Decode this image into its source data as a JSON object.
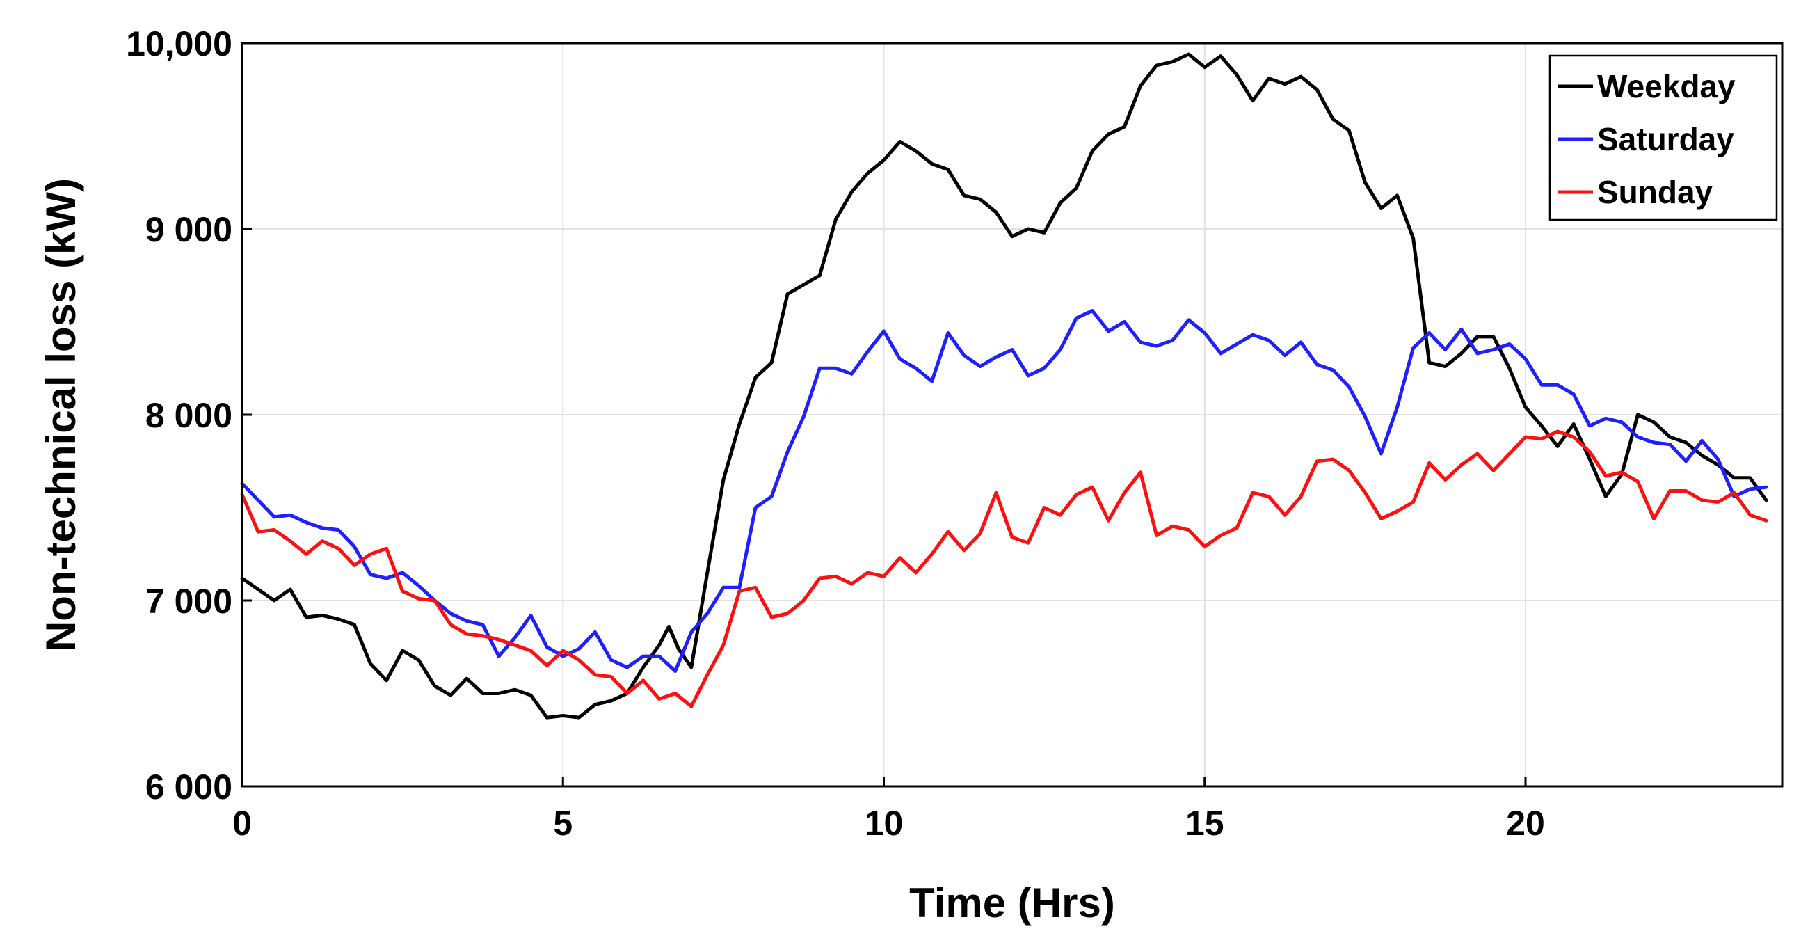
{
  "chart_data": {
    "type": "line",
    "title": "",
    "xlabel": "Time (Hrs)",
    "ylabel": "Non-technical loss (kW)",
    "xlim": [
      0,
      24
    ],
    "ylim": [
      6000,
      10000
    ],
    "grid": true,
    "legend_position": "top-right",
    "x_ticks": [
      0,
      5,
      10,
      15,
      20
    ],
    "x_tick_labels": [
      "0",
      "5",
      "10",
      "15",
      "20"
    ],
    "y_ticks": [
      6000,
      7000,
      8000,
      9000,
      10000
    ],
    "y_tick_labels": [
      "6 000",
      "7 000",
      "8 000",
      "9 000",
      "10,000"
    ],
    "series": [
      {
        "name": "Weekday",
        "color": "#000000",
        "points": [
          [
            0,
            7120
          ],
          [
            0.5,
            7000
          ],
          [
            0.75,
            7060
          ],
          [
            1,
            6910
          ],
          [
            1.25,
            6920
          ],
          [
            1.5,
            6900
          ],
          [
            1.75,
            6870
          ],
          [
            2,
            6660
          ],
          [
            2.25,
            6570
          ],
          [
            2.5,
            6730
          ],
          [
            2.75,
            6680
          ],
          [
            3,
            6540
          ],
          [
            3.25,
            6490
          ],
          [
            3.5,
            6580
          ],
          [
            3.75,
            6500
          ],
          [
            4,
            6500
          ],
          [
            4.25,
            6520
          ],
          [
            4.5,
            6490
          ],
          [
            4.75,
            6370
          ],
          [
            5,
            6380
          ],
          [
            5.25,
            6370
          ],
          [
            5.5,
            6440
          ],
          [
            5.75,
            6460
          ],
          [
            6,
            6500
          ],
          [
            6.25,
            6640
          ],
          [
            6.5,
            6760
          ],
          [
            6.65,
            6860
          ],
          [
            6.8,
            6740
          ],
          [
            7,
            6640
          ],
          [
            7.25,
            7150
          ],
          [
            7.5,
            7650
          ],
          [
            7.75,
            7950
          ],
          [
            8,
            8200
          ],
          [
            8.25,
            8280
          ],
          [
            8.5,
            8650
          ],
          [
            8.75,
            8700
          ],
          [
            9,
            8750
          ],
          [
            9.25,
            9050
          ],
          [
            9.5,
            9200
          ],
          [
            9.75,
            9300
          ],
          [
            10,
            9370
          ],
          [
            10.25,
            9470
          ],
          [
            10.5,
            9420
          ],
          [
            10.75,
            9350
          ],
          [
            11,
            9320
          ],
          [
            11.25,
            9180
          ],
          [
            11.5,
            9160
          ],
          [
            11.75,
            9090
          ],
          [
            12,
            8960
          ],
          [
            12.25,
            9000
          ],
          [
            12.5,
            8980
          ],
          [
            12.75,
            9140
          ],
          [
            13,
            9220
          ],
          [
            13.25,
            9420
          ],
          [
            13.5,
            9510
          ],
          [
            13.75,
            9550
          ],
          [
            14,
            9770
          ],
          [
            14.25,
            9880
          ],
          [
            14.5,
            9900
          ],
          [
            14.75,
            9940
          ],
          [
            15,
            9870
          ],
          [
            15.25,
            9930
          ],
          [
            15.5,
            9830
          ],
          [
            15.75,
            9690
          ],
          [
            16,
            9810
          ],
          [
            16.25,
            9780
          ],
          [
            16.5,
            9820
          ],
          [
            16.75,
            9750
          ],
          [
            17,
            9590
          ],
          [
            17.25,
            9530
          ],
          [
            17.5,
            9250
          ],
          [
            17.75,
            9110
          ],
          [
            18,
            9180
          ],
          [
            18.25,
            8950
          ],
          [
            18.5,
            8280
          ],
          [
            18.75,
            8260
          ],
          [
            19,
            8330
          ],
          [
            19.25,
            8420
          ],
          [
            19.5,
            8420
          ],
          [
            19.75,
            8250
          ],
          [
            20,
            8040
          ],
          [
            20.25,
            7940
          ],
          [
            20.5,
            7830
          ],
          [
            20.75,
            7950
          ],
          [
            21,
            7760
          ],
          [
            21.25,
            7560
          ],
          [
            21.5,
            7680
          ],
          [
            21.75,
            8000
          ],
          [
            22,
            7960
          ],
          [
            22.25,
            7880
          ],
          [
            22.5,
            7850
          ],
          [
            22.75,
            7780
          ],
          [
            23,
            7730
          ],
          [
            23.25,
            7660
          ],
          [
            23.5,
            7660
          ],
          [
            23.75,
            7540
          ]
        ]
      },
      {
        "name": "Saturday",
        "color": "#1f1fff",
        "points": [
          [
            0,
            7630
          ],
          [
            0.25,
            7540
          ],
          [
            0.5,
            7450
          ],
          [
            0.75,
            7460
          ],
          [
            1,
            7420
          ],
          [
            1.25,
            7390
          ],
          [
            1.5,
            7380
          ],
          [
            1.75,
            7290
          ],
          [
            2,
            7140
          ],
          [
            2.25,
            7120
          ],
          [
            2.5,
            7150
          ],
          [
            2.75,
            7080
          ],
          [
            3,
            7000
          ],
          [
            3.25,
            6930
          ],
          [
            3.5,
            6890
          ],
          [
            3.75,
            6870
          ],
          [
            4,
            6700
          ],
          [
            4.25,
            6800
          ],
          [
            4.5,
            6920
          ],
          [
            4.75,
            6750
          ],
          [
            5,
            6700
          ],
          [
            5.25,
            6740
          ],
          [
            5.5,
            6830
          ],
          [
            5.75,
            6680
          ],
          [
            6,
            6640
          ],
          [
            6.25,
            6700
          ],
          [
            6.5,
            6700
          ],
          [
            6.75,
            6620
          ],
          [
            7,
            6830
          ],
          [
            7.25,
            6930
          ],
          [
            7.5,
            7070
          ],
          [
            7.75,
            7070
          ],
          [
            8,
            7500
          ],
          [
            8.25,
            7560
          ],
          [
            8.5,
            7800
          ],
          [
            8.75,
            7990
          ],
          [
            9,
            8250
          ],
          [
            9.25,
            8250
          ],
          [
            9.5,
            8220
          ],
          [
            9.75,
            8340
          ],
          [
            10,
            8450
          ],
          [
            10.25,
            8300
          ],
          [
            10.5,
            8250
          ],
          [
            10.75,
            8180
          ],
          [
            11,
            8440
          ],
          [
            11.25,
            8320
          ],
          [
            11.5,
            8260
          ],
          [
            11.75,
            8310
          ],
          [
            12,
            8350
          ],
          [
            12.25,
            8210
          ],
          [
            12.5,
            8250
          ],
          [
            12.75,
            8350
          ],
          [
            13,
            8520
          ],
          [
            13.25,
            8560
          ],
          [
            13.5,
            8450
          ],
          [
            13.75,
            8500
          ],
          [
            14,
            8390
          ],
          [
            14.25,
            8370
          ],
          [
            14.5,
            8400
          ],
          [
            14.75,
            8510
          ],
          [
            15,
            8440
          ],
          [
            15.25,
            8330
          ],
          [
            15.5,
            8380
          ],
          [
            15.75,
            8430
          ],
          [
            16,
            8400
          ],
          [
            16.25,
            8320
          ],
          [
            16.5,
            8390
          ],
          [
            16.75,
            8270
          ],
          [
            17,
            8240
          ],
          [
            17.25,
            8150
          ],
          [
            17.5,
            7990
          ],
          [
            17.75,
            7790
          ],
          [
            18,
            8040
          ],
          [
            18.25,
            8360
          ],
          [
            18.5,
            8440
          ],
          [
            18.75,
            8350
          ],
          [
            19,
            8460
          ],
          [
            19.25,
            8330
          ],
          [
            19.5,
            8350
          ],
          [
            19.75,
            8380
          ],
          [
            20,
            8300
          ],
          [
            20.25,
            8160
          ],
          [
            20.5,
            8160
          ],
          [
            20.75,
            8110
          ],
          [
            21,
            7940
          ],
          [
            21.25,
            7980
          ],
          [
            21.5,
            7960
          ],
          [
            21.75,
            7880
          ],
          [
            22,
            7850
          ],
          [
            22.25,
            7840
          ],
          [
            22.5,
            7750
          ],
          [
            22.75,
            7860
          ],
          [
            23,
            7760
          ],
          [
            23.25,
            7560
          ],
          [
            23.5,
            7600
          ],
          [
            23.75,
            7610
          ]
        ]
      },
      {
        "name": "Sunday",
        "color": "#ff1010",
        "points": [
          [
            0,
            7570
          ],
          [
            0.25,
            7370
          ],
          [
            0.5,
            7380
          ],
          [
            0.75,
            7320
          ],
          [
            1,
            7250
          ],
          [
            1.25,
            7320
          ],
          [
            1.5,
            7280
          ],
          [
            1.75,
            7190
          ],
          [
            2,
            7250
          ],
          [
            2.25,
            7280
          ],
          [
            2.5,
            7050
          ],
          [
            2.75,
            7010
          ],
          [
            3,
            7000
          ],
          [
            3.25,
            6870
          ],
          [
            3.5,
            6820
          ],
          [
            3.75,
            6810
          ],
          [
            4,
            6790
          ],
          [
            4.25,
            6760
          ],
          [
            4.5,
            6730
          ],
          [
            4.75,
            6650
          ],
          [
            5,
            6730
          ],
          [
            5.25,
            6680
          ],
          [
            5.5,
            6600
          ],
          [
            5.75,
            6590
          ],
          [
            6,
            6500
          ],
          [
            6.25,
            6570
          ],
          [
            6.5,
            6470
          ],
          [
            6.75,
            6500
          ],
          [
            7,
            6430
          ],
          [
            7.25,
            6600
          ],
          [
            7.5,
            6760
          ],
          [
            7.75,
            7050
          ],
          [
            8,
            7070
          ],
          [
            8.25,
            6910
          ],
          [
            8.5,
            6930
          ],
          [
            8.75,
            7000
          ],
          [
            9,
            7120
          ],
          [
            9.25,
            7130
          ],
          [
            9.5,
            7090
          ],
          [
            9.75,
            7150
          ],
          [
            10,
            7130
          ],
          [
            10.25,
            7230
          ],
          [
            10.5,
            7150
          ],
          [
            10.75,
            7250
          ],
          [
            11,
            7370
          ],
          [
            11.25,
            7270
          ],
          [
            11.5,
            7360
          ],
          [
            11.75,
            7580
          ],
          [
            12,
            7340
          ],
          [
            12.25,
            7310
          ],
          [
            12.5,
            7500
          ],
          [
            12.75,
            7460
          ],
          [
            13,
            7570
          ],
          [
            13.25,
            7610
          ],
          [
            13.5,
            7430
          ],
          [
            13.75,
            7580
          ],
          [
            14,
            7690
          ],
          [
            14.25,
            7350
          ],
          [
            14.5,
            7400
          ],
          [
            14.75,
            7380
          ],
          [
            15,
            7290
          ],
          [
            15.25,
            7350
          ],
          [
            15.5,
            7390
          ],
          [
            15.75,
            7580
          ],
          [
            16,
            7560
          ],
          [
            16.25,
            7460
          ],
          [
            16.5,
            7560
          ],
          [
            16.75,
            7750
          ],
          [
            17,
            7760
          ],
          [
            17.25,
            7700
          ],
          [
            17.5,
            7580
          ],
          [
            17.75,
            7440
          ],
          [
            18,
            7480
          ],
          [
            18.25,
            7530
          ],
          [
            18.5,
            7740
          ],
          [
            18.75,
            7650
          ],
          [
            19,
            7730
          ],
          [
            19.25,
            7790
          ],
          [
            19.5,
            7700
          ],
          [
            19.75,
            7790
          ],
          [
            20,
            7880
          ],
          [
            20.25,
            7870
          ],
          [
            20.5,
            7910
          ],
          [
            20.75,
            7880
          ],
          [
            21,
            7800
          ],
          [
            21.25,
            7670
          ],
          [
            21.5,
            7690
          ],
          [
            21.75,
            7640
          ],
          [
            22,
            7440
          ],
          [
            22.25,
            7590
          ],
          [
            22.5,
            7590
          ],
          [
            22.75,
            7540
          ],
          [
            23,
            7530
          ],
          [
            23.25,
            7580
          ],
          [
            23.5,
            7460
          ],
          [
            23.75,
            7430
          ]
        ]
      }
    ]
  }
}
